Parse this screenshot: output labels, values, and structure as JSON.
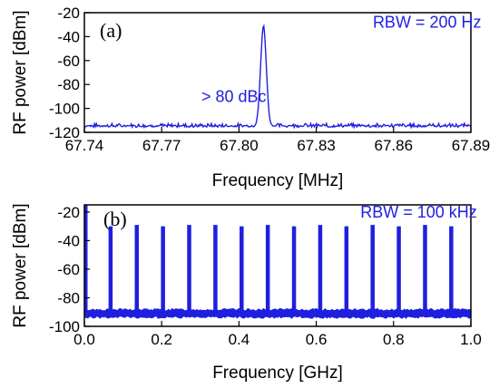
{
  "colors": {
    "trace": "#1f1fe0",
    "axis": "#000000"
  },
  "chart_data": [
    {
      "type": "line",
      "panel_label": "(a)",
      "xlabel": "Frequency [MHz]",
      "ylabel": "RF power [dBm]",
      "xlim": [
        67.74,
        67.89
      ],
      "ylim": [
        -120,
        -20
      ],
      "xticks": [
        "67.74",
        "67.77",
        "67.80",
        "67.83",
        "67.86",
        "67.89"
      ],
      "yticks": [
        "-20",
        "-40",
        "-60",
        "-80",
        "-100",
        "-120"
      ],
      "grid": false,
      "annotations": [
        {
          "text": "RBW = 200 Hz",
          "x": 67.873,
          "y": -28
        },
        {
          "text": "> 80 dBc",
          "x": 67.798,
          "y": -90
        }
      ],
      "series": [
        {
          "noise_floor": -115,
          "peak": {
            "x": 67.8095,
            "y": -31
          }
        }
      ]
    },
    {
      "type": "line",
      "panel_label": "(b)",
      "xlabel": "Frequency [GHz]",
      "ylabel": "RF power [dBm]",
      "xlim": [
        0.0,
        1.0
      ],
      "ylim": [
        -100,
        -15
      ],
      "xticks": [
        "0.0",
        "0.2",
        "0.4",
        "0.6",
        "0.8",
        "1.0"
      ],
      "yticks": [
        "-20",
        "-40",
        "-60",
        "-80",
        "-100"
      ],
      "grid": false,
      "annotations": [
        {
          "text": "RBW = 100 kHz",
          "x": 0.865,
          "y": -20
        }
      ],
      "series": [
        {
          "noise_floor": -91,
          "comb_lines_x": [
            0.0678,
            0.1356,
            0.2034,
            0.2712,
            0.339,
            0.4068,
            0.4746,
            0.5424,
            0.6102,
            0.678,
            0.7458,
            0.8136,
            0.8814,
            0.9492
          ],
          "comb_lines_y": [
            -30,
            -29,
            -30,
            -29,
            -29,
            -30,
            -29,
            -30,
            -29,
            -30,
            -29,
            -30,
            -29,
            -30
          ],
          "dc_line": {
            "x": 0.0,
            "y": -15
          }
        }
      ]
    }
  ]
}
